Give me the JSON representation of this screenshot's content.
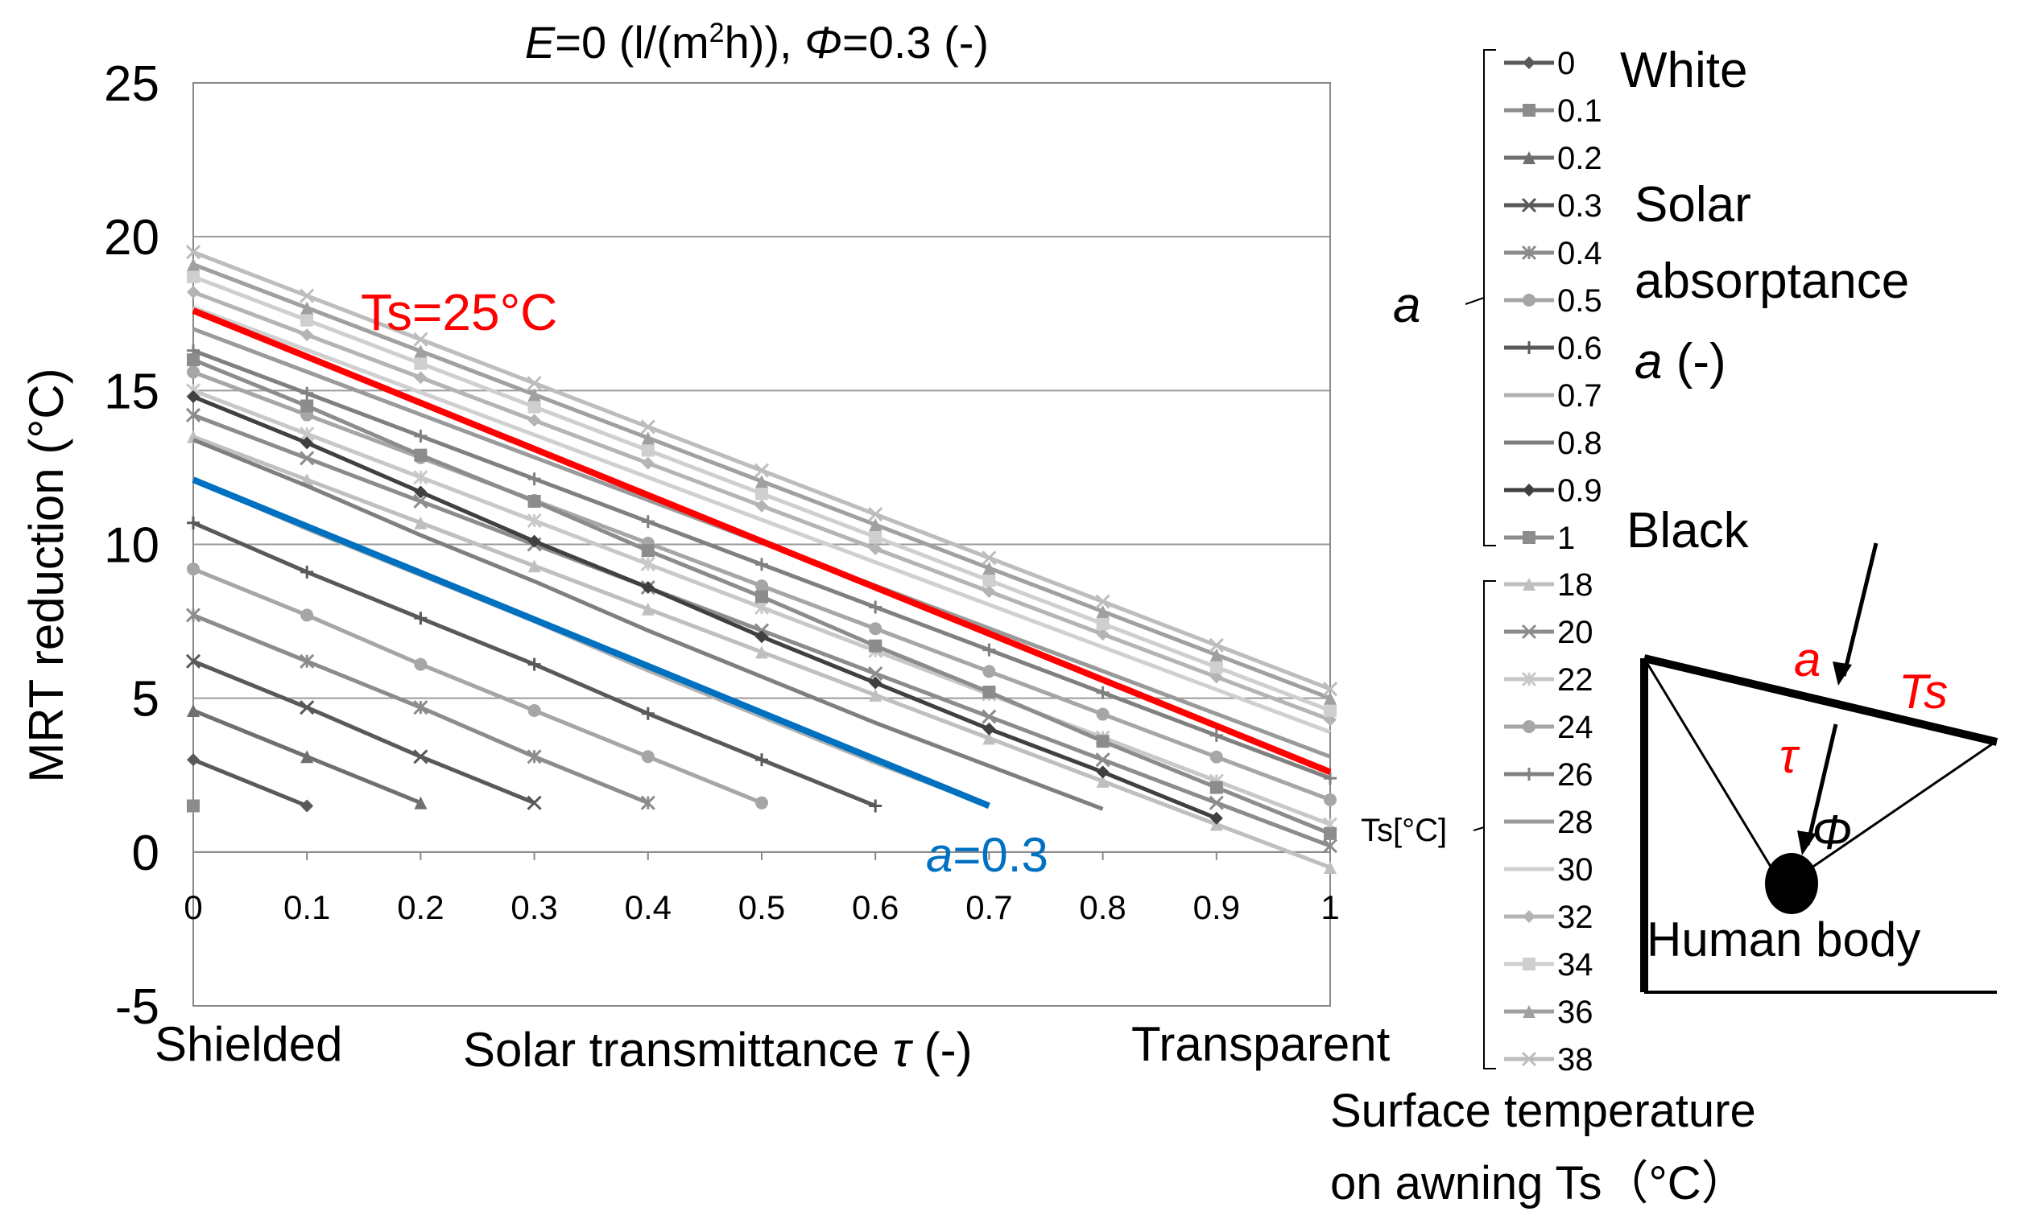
{
  "chart_data": {
    "type": "line",
    "title": "E=0 (l/(m²h)), Φ=0.3 (-)",
    "title_parts": {
      "E": "E",
      "e_rest": "=0 (l/(m",
      "sup": "2",
      "h_rest": "h)), ",
      "phi": "Φ",
      "phi_rest": "=0.3 (-)"
    },
    "ylabel": "MRT reduction (°C)",
    "xlabel_left": "Shielded",
    "xlabel_center": "Solar transmittance τ (-)",
    "xlabel_center_parts": {
      "text": "Solar transmittance ",
      "sym": "τ",
      "unit": " (-)"
    },
    "xlabel_right": "Transparent",
    "xlim": [
      0,
      1
    ],
    "ylim": [
      -5,
      25
    ],
    "y_ticks": [
      "-5",
      "0",
      "5",
      "10",
      "15",
      "20",
      "25"
    ],
    "x_ticks": [
      "0",
      "0.1",
      "0.2",
      "0.3",
      "0.4",
      "0.5",
      "0.6",
      "0.7",
      "0.8",
      "0.9",
      "1"
    ],
    "grid": true,
    "series_absorptance": [
      {
        "name": "0",
        "marker": "diamond",
        "color": "#595959",
        "x": [
          0,
          0.1
        ],
        "y": [
          3.0,
          1.5
        ]
      },
      {
        "name": "0.1",
        "marker": "square",
        "color": "#8c8c8c",
        "x": [
          0
        ],
        "y": [
          1.5
        ]
      },
      {
        "name": "0.2",
        "marker": "triangle",
        "color": "#6f6f6f",
        "x": [
          0,
          0.1,
          0.2
        ],
        "y": [
          4.6,
          3.1,
          1.6
        ]
      },
      {
        "name": "0.3",
        "marker": "x",
        "color": "#595959",
        "x": [
          0,
          0.1,
          0.2,
          0.3
        ],
        "y": [
          6.2,
          4.7,
          3.1,
          1.6
        ]
      },
      {
        "name": "0.4",
        "marker": "star",
        "color": "#8c8c8c",
        "x": [
          0,
          0.1,
          0.2,
          0.3,
          0.4
        ],
        "y": [
          7.7,
          6.2,
          4.7,
          3.1,
          1.6
        ]
      },
      {
        "name": "0.5",
        "marker": "circle",
        "color": "#a6a6a6",
        "x": [
          0,
          0.1,
          0.2,
          0.3,
          0.4,
          0.5
        ],
        "y": [
          9.2,
          7.7,
          6.1,
          4.6,
          3.1,
          1.6
        ]
      },
      {
        "name": "0.6",
        "marker": "plus",
        "color": "#595959",
        "x": [
          0,
          0.1,
          0.2,
          0.3,
          0.4,
          0.5,
          0.6
        ],
        "y": [
          10.7,
          9.1,
          7.6,
          6.1,
          4.5,
          3.0,
          1.5
        ]
      },
      {
        "name": "0.7",
        "marker": "none",
        "color": "#b0b0b0",
        "x": [
          0,
          0.1,
          0.2,
          0.3,
          0.4,
          0.5,
          0.6,
          0.7
        ],
        "y": [
          12.1,
          10.5,
          9.0,
          7.5,
          5.9,
          4.4,
          2.9,
          1.5
        ]
      },
      {
        "name": "0.8",
        "marker": "none",
        "color": "#7f7f7f",
        "x": [
          0,
          0.1,
          0.2,
          0.3,
          0.4,
          0.5,
          0.6,
          0.7,
          0.8
        ],
        "y": [
          13.4,
          11.9,
          10.3,
          8.8,
          7.2,
          5.7,
          4.2,
          2.8,
          1.4
        ]
      },
      {
        "name": "0.9",
        "marker": "diamond",
        "color": "#404040",
        "x": [
          0,
          0.1,
          0.2,
          0.3,
          0.4,
          0.5,
          0.6,
          0.7,
          0.8,
          0.9
        ],
        "y": [
          14.8,
          13.3,
          11.7,
          10.1,
          8.6,
          7.0,
          5.5,
          4.0,
          2.6,
          1.1
        ]
      },
      {
        "name": "1",
        "marker": "square",
        "color": "#8c8c8c",
        "x": [
          0,
          0.1,
          0.2,
          0.3,
          0.4,
          0.5,
          0.6,
          0.7,
          0.8,
          0.9,
          1
        ],
        "y": [
          16.0,
          14.5,
          12.9,
          11.4,
          9.8,
          8.3,
          6.7,
          5.2,
          3.6,
          2.1,
          0.6
        ]
      }
    ],
    "series_surface_temp": [
      {
        "name": "18",
        "marker": "triangle",
        "color": "#bfbfbf",
        "y0": 13.5,
        "y1": -0.5
      },
      {
        "name": "20",
        "marker": "x",
        "color": "#8c8c8c",
        "y0": 14.2,
        "y1": 0.2
      },
      {
        "name": "22",
        "marker": "star",
        "color": "#c8c8c8",
        "y0": 15.0,
        "y1": 0.9
      },
      {
        "name": "24",
        "marker": "circle",
        "color": "#a6a6a6",
        "y0": 15.6,
        "y1": 1.7
      },
      {
        "name": "26",
        "marker": "plus",
        "color": "#808080",
        "y0": 16.3,
        "y1": 2.4
      },
      {
        "name": "28",
        "marker": "none",
        "color": "#9a9a9a",
        "y0": 17.0,
        "y1": 3.1
      },
      {
        "name": "30",
        "marker": "none",
        "color": "#d0d0d0",
        "y0": 17.7,
        "y1": 3.9
      },
      {
        "name": "32",
        "marker": "diamond",
        "color": "#b4b4b4",
        "y0": 18.2,
        "y1": 4.3
      },
      {
        "name": "34",
        "marker": "square",
        "color": "#cfcfcf",
        "y0": 18.7,
        "y1": 4.6
      },
      {
        "name": "36",
        "marker": "triangle",
        "color": "#a0a0a0",
        "y0": 19.1,
        "y1": 5.0
      },
      {
        "name": "38",
        "marker": "x",
        "color": "#bdbdbd",
        "y0": 19.5,
        "y1": 5.3
      }
    ],
    "highlight_ts25": {
      "label": "Ts=25°C",
      "color": "#ff0000",
      "y0": 17.6,
      "y1": 2.6
    },
    "highlight_a03": {
      "label_sym": "a",
      "label_rest": "=0.3",
      "color": "#0070c0",
      "x": [
        0,
        0.7
      ],
      "y": [
        12.1,
        1.5
      ]
    },
    "legend_a": {
      "group_label": "a",
      "entries": [
        "0",
        "0.1",
        "0.2",
        "0.3",
        "0.4",
        "0.5",
        "0.6",
        "0.7",
        "0.8",
        "0.9",
        "1"
      ],
      "note_white": "White",
      "note_solar": "Solar",
      "note_absorptance": "absorptance",
      "note_a_sym": "a",
      "note_a_unit": " (-)",
      "note_black": "Black"
    },
    "legend_ts": {
      "group_label": "Ts[°C]",
      "entries": [
        "18",
        "20",
        "22",
        "24",
        "26",
        "28",
        "30",
        "32",
        "34",
        "36",
        "38"
      ],
      "caption_line1": "Surface temperature",
      "caption_line2": "on awning Ts（°C）"
    },
    "diagram": {
      "a_label": "a",
      "ts_label": "Ts",
      "tau_label": "τ",
      "phi_label": "Φ",
      "body_label": "Human body",
      "accent_color": "#ff0000"
    }
  }
}
